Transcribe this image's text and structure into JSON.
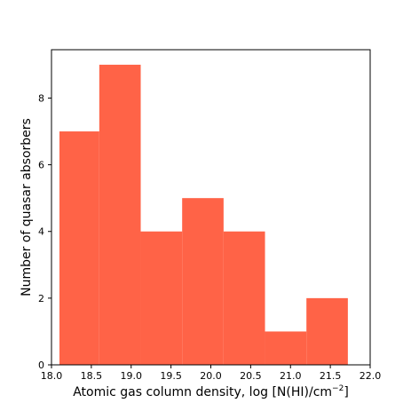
{
  "chart_data": {
    "type": "bar",
    "subtype": "histogram",
    "bin_edges": [
      18.1,
      18.6,
      19.12,
      19.64,
      20.16,
      20.68,
      21.2,
      21.72
    ],
    "values": [
      7,
      9,
      4,
      5,
      4,
      1,
      2
    ],
    "xlim": [
      18.0,
      22.0
    ],
    "ylim": [
      0,
      9.45
    ],
    "xticks": [
      "18.0",
      "18.5",
      "19.0",
      "19.5",
      "20.0",
      "20.5",
      "21.0",
      "21.5",
      "22.0"
    ],
    "yticks": [
      "0",
      "2",
      "4",
      "6",
      "8"
    ],
    "xlabel_main": "Atomic gas column density, log [N(HI)/cm",
    "xlabel_sup": "−2",
    "xlabel_end": "]",
    "ylabel": "Number of quasar absorbers",
    "bar_color": "#ff6347",
    "grid": false,
    "legend": "none"
  }
}
